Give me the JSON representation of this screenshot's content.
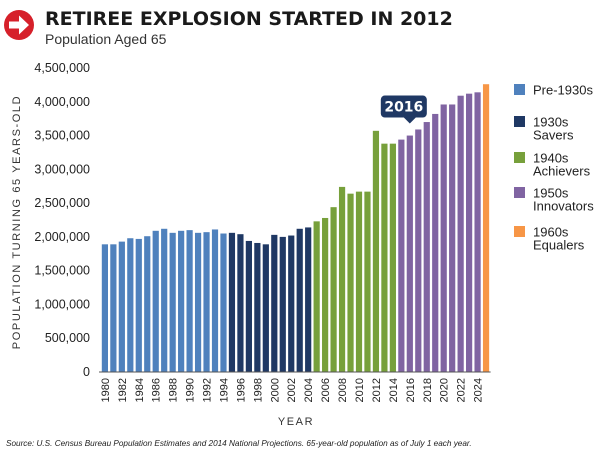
{
  "header": {
    "icon": "arrow-right-icon",
    "icon_color": "#d6202a"
  },
  "chart_data": {
    "type": "bar",
    "title": "RETIREE EXPLOSION STARTED IN 2012",
    "subtitle": "Population Aged 65",
    "xlabel": "YEAR",
    "ylabel": "POPULATION TURNING 65 YEARS-OLD",
    "ylim": [
      0,
      4500000
    ],
    "yticks": [
      {
        "value": 0,
        "label": "0"
      },
      {
        "value": 500000,
        "label": "500,000"
      },
      {
        "value": 1000000,
        "label": "1,000,000"
      },
      {
        "value": 1500000,
        "label": "1,500,000"
      },
      {
        "value": 2000000,
        "label": "2,000,000"
      },
      {
        "value": 2500000,
        "label": "2,500,000"
      },
      {
        "value": 3000000,
        "label": "3,000,000"
      },
      {
        "value": 3500000,
        "label": "3,500,000"
      },
      {
        "value": 4000000,
        "label": "4,000,000"
      },
      {
        "value": 4500000,
        "label": "4,500,000"
      }
    ],
    "xtick_labels": [
      "1980",
      "1982",
      "1984",
      "1986",
      "1988",
      "1990",
      "1992",
      "1994",
      "1996",
      "1998",
      "2000",
      "2002",
      "2004",
      "2006",
      "2008",
      "2010",
      "2012",
      "2014",
      "2016",
      "2018",
      "2020",
      "2022",
      "2024"
    ],
    "grid": false,
    "legend_position": "right",
    "legend": [
      {
        "key": "pre1930",
        "line1": "Pre-1930s",
        "line2": "",
        "color": "#4f81bd"
      },
      {
        "key": "savers",
        "line1": "1930s",
        "line2": "Savers",
        "color": "#1f3864"
      },
      {
        "key": "achievers",
        "line1": "1940s",
        "line2": "Achievers",
        "color": "#77a03b"
      },
      {
        "key": "innovators",
        "line1": "1950s",
        "line2": "Innovators",
        "color": "#8064a2"
      },
      {
        "key": "equalers",
        "line1": "1960s",
        "line2": "Equalers",
        "color": "#f79646"
      }
    ],
    "series": [
      {
        "key": "pre1930",
        "years": [
          1980,
          1981,
          1982,
          1983,
          1984,
          1985,
          1986,
          1987,
          1988,
          1989,
          1990,
          1991,
          1992,
          1993,
          1994
        ],
        "values": [
          1890000,
          1890000,
          1930000,
          1980000,
          1970000,
          2010000,
          2090000,
          2120000,
          2060000,
          2090000,
          2100000,
          2060000,
          2070000,
          2110000,
          2050000
        ]
      },
      {
        "key": "savers",
        "years": [
          1995,
          1996,
          1997,
          1998,
          1999,
          2000,
          2001,
          2002,
          2003,
          2004
        ],
        "values": [
          2060000,
          2040000,
          1940000,
          1910000,
          1890000,
          2030000,
          2000000,
          2020000,
          2120000,
          2140000
        ]
      },
      {
        "key": "achievers",
        "years": [
          2005,
          2006,
          2007,
          2008,
          2009,
          2010,
          2011,
          2012,
          2013,
          2014
        ],
        "values": [
          2230000,
          2280000,
          2440000,
          2740000,
          2640000,
          2670000,
          2670000,
          3570000,
          3380000,
          3380000
        ]
      },
      {
        "key": "innovators",
        "years": [
          2015,
          2016,
          2017,
          2018,
          2019,
          2020,
          2021,
          2022,
          2023,
          2024
        ],
        "values": [
          3440000,
          3500000,
          3590000,
          3700000,
          3820000,
          3960000,
          3960000,
          4090000,
          4120000,
          4140000
        ]
      },
      {
        "key": "equalers",
        "years": [
          2025
        ],
        "values": [
          4260000
        ]
      }
    ],
    "annotations": [
      {
        "text": "2016",
        "year": 2016,
        "color": "#1f3864"
      }
    ],
    "source": "Source: U.S. Census Bureau Population Estimates and 2014 National Projections. 65-year-old population as of July 1 each year."
  }
}
